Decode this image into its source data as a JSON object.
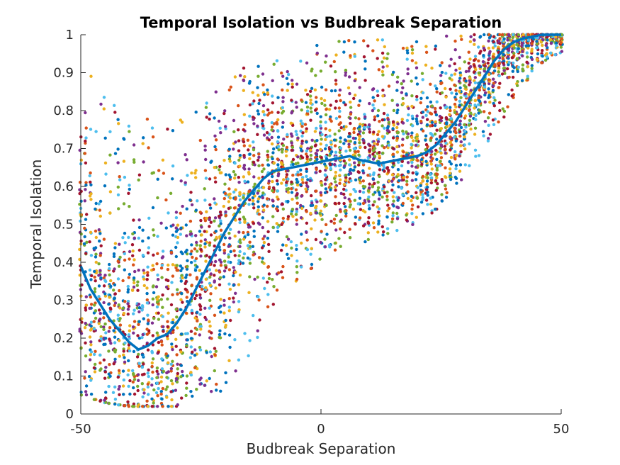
{
  "chart_data": {
    "type": "scatter",
    "title": "Temporal Isolation vs Budbreak Separation",
    "xlabel": "Budbreak Separation",
    "ylabel": "Temporal Isolation",
    "xlim": [
      -50,
      50
    ],
    "ylim": [
      0,
      1
    ],
    "x_ticks": [
      "-50",
      "0",
      "50"
    ],
    "y_ticks": [
      "0",
      "0.1",
      "0.2",
      "0.3",
      "0.4",
      "0.5",
      "0.6",
      "0.7",
      "0.8",
      "0.9",
      "1"
    ],
    "x_tick_values": [
      -50,
      0,
      50
    ],
    "y_tick_values": [
      0,
      0.1,
      0.2,
      0.3,
      0.4,
      0.5,
      0.6,
      0.7,
      0.8,
      0.9,
      1
    ],
    "grid": false,
    "legend": "none",
    "point_colors": [
      "#0072BD",
      "#D95319",
      "#EDB120",
      "#7E2F8E",
      "#77AC30",
      "#4DBEEE",
      "#A2142F"
    ],
    "trend_color": "#0072BD",
    "scatter_envelope": {
      "x": [
        -50,
        -45,
        -40,
        -35,
        -30,
        -25,
        -20,
        -15,
        -10,
        -5,
        0,
        5,
        10,
        15,
        20,
        25,
        30,
        35,
        40,
        45,
        50
      ],
      "lower": [
        0.05,
        0.03,
        0.02,
        0.02,
        0.02,
        0.03,
        0.05,
        0.15,
        0.28,
        0.35,
        0.4,
        0.43,
        0.46,
        0.48,
        0.5,
        0.55,
        0.62,
        0.72,
        0.82,
        0.92,
        0.95
      ],
      "upper": [
        0.92,
        0.85,
        0.78,
        0.78,
        0.8,
        0.82,
        0.88,
        0.92,
        0.95,
        0.97,
        0.98,
        0.99,
        0.99,
        0.99,
        1.0,
        1.0,
        1.0,
        1.0,
        1.0,
        1.0,
        1.0
      ]
    },
    "series": [
      {
        "x": [
          -50,
          -48,
          -46,
          -44,
          -42,
          -40,
          -38,
          -36,
          -34,
          -32,
          -30,
          -28,
          -26,
          -24,
          -22,
          -20,
          -18,
          -16,
          -14,
          -12,
          -10,
          -8,
          -6,
          -4,
          -2,
          0,
          2,
          4,
          6,
          8,
          10,
          12,
          14,
          16,
          18,
          20,
          22,
          24,
          26,
          28,
          30,
          32,
          34,
          36,
          38,
          40,
          42,
          44,
          46,
          48,
          50
        ],
        "y": [
          0.39,
          0.33,
          0.29,
          0.25,
          0.22,
          0.19,
          0.17,
          0.18,
          0.2,
          0.21,
          0.24,
          0.28,
          0.33,
          0.38,
          0.43,
          0.48,
          0.52,
          0.56,
          0.59,
          0.62,
          0.64,
          0.645,
          0.65,
          0.655,
          0.66,
          0.665,
          0.67,
          0.675,
          0.68,
          0.67,
          0.665,
          0.66,
          0.665,
          0.67,
          0.675,
          0.68,
          0.69,
          0.71,
          0.74,
          0.77,
          0.81,
          0.85,
          0.89,
          0.93,
          0.96,
          0.98,
          0.99,
          0.995,
          1.0,
          1.0,
          1.0
        ]
      }
    ]
  }
}
